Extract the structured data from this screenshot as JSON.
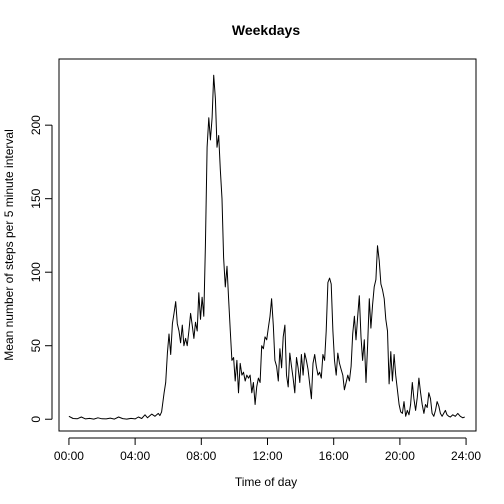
{
  "chart_data": {
    "type": "line",
    "title": "Weekdays",
    "xlabel": "Time of day",
    "ylabel": "Mean number of steps per 5 minute interval",
    "xlim": [
      -0.6,
      24.6
    ],
    "ylim": [
      -8,
      245
    ],
    "x_ticks": [
      {
        "value": 0,
        "label": "00:00"
      },
      {
        "value": 4,
        "label": "04:00"
      },
      {
        "value": 8,
        "label": "08:00"
      },
      {
        "value": 12,
        "label": "12:00"
      },
      {
        "value": 16,
        "label": "16:00"
      },
      {
        "value": 20,
        "label": "20:00"
      },
      {
        "value": 24,
        "label": "24:00"
      }
    ],
    "y_ticks": [
      {
        "value": 0,
        "label": "0"
      },
      {
        "value": 50,
        "label": "50"
      },
      {
        "value": 100,
        "label": "100"
      },
      {
        "value": 150,
        "label": "150"
      },
      {
        "value": 200,
        "label": "200"
      }
    ],
    "grid": false,
    "series": [
      {
        "color": "#000000",
        "points": [
          [
            0.0,
            2
          ],
          [
            0.25,
            0.5
          ],
          [
            0.5,
            0.3
          ],
          [
            0.75,
            1.5
          ],
          [
            1.0,
            0.2
          ],
          [
            1.25,
            0.6
          ],
          [
            1.5,
            0.1
          ],
          [
            1.75,
            1.0
          ],
          [
            2.0,
            0.3
          ],
          [
            2.25,
            0.2
          ],
          [
            2.5,
            0.8
          ],
          [
            2.75,
            0.1
          ],
          [
            3.0,
            1.5
          ],
          [
            3.25,
            0.4
          ],
          [
            3.5,
            0.1
          ],
          [
            3.75,
            0.6
          ],
          [
            4.0,
            0.2
          ],
          [
            4.2,
            1.5
          ],
          [
            4.4,
            0.5
          ],
          [
            4.6,
            3.0
          ],
          [
            4.75,
            1.0
          ],
          [
            5.0,
            3.5
          ],
          [
            5.2,
            2.0
          ],
          [
            5.4,
            4.0
          ],
          [
            5.5,
            2.5
          ],
          [
            5.6,
            5.0
          ],
          [
            5.75,
            18
          ],
          [
            5.85,
            25
          ],
          [
            5.95,
            45
          ],
          [
            6.05,
            58
          ],
          [
            6.15,
            44
          ],
          [
            6.25,
            65
          ],
          [
            6.35,
            72
          ],
          [
            6.45,
            80
          ],
          [
            6.55,
            65
          ],
          [
            6.65,
            60
          ],
          [
            6.75,
            52
          ],
          [
            6.85,
            64
          ],
          [
            6.95,
            50
          ],
          [
            7.05,
            55
          ],
          [
            7.15,
            50
          ],
          [
            7.25,
            60
          ],
          [
            7.35,
            72
          ],
          [
            7.45,
            64
          ],
          [
            7.55,
            55
          ],
          [
            7.65,
            66
          ],
          [
            7.75,
            60
          ],
          [
            7.85,
            86
          ],
          [
            7.95,
            68
          ],
          [
            8.05,
            83
          ],
          [
            8.15,
            70
          ],
          [
            8.25,
            118
          ],
          [
            8.35,
            185
          ],
          [
            8.45,
            205
          ],
          [
            8.55,
            190
          ],
          [
            8.65,
            205
          ],
          [
            8.75,
            234
          ],
          [
            8.85,
            218
          ],
          [
            8.95,
            185
          ],
          [
            9.05,
            193
          ],
          [
            9.15,
            170
          ],
          [
            9.25,
            150
          ],
          [
            9.35,
            110
          ],
          [
            9.45,
            90
          ],
          [
            9.55,
            104
          ],
          [
            9.65,
            82
          ],
          [
            9.75,
            60
          ],
          [
            9.85,
            40
          ],
          [
            9.95,
            42
          ],
          [
            10.05,
            26
          ],
          [
            10.15,
            40
          ],
          [
            10.25,
            18
          ],
          [
            10.35,
            38
          ],
          [
            10.45,
            30
          ],
          [
            10.55,
            32
          ],
          [
            10.65,
            26
          ],
          [
            10.75,
            30
          ],
          [
            10.85,
            28
          ],
          [
            10.95,
            30
          ],
          [
            11.05,
            18
          ],
          [
            11.15,
            25
          ],
          [
            11.25,
            10
          ],
          [
            11.35,
            22
          ],
          [
            11.45,
            28
          ],
          [
            11.55,
            25
          ],
          [
            11.65,
            50
          ],
          [
            11.75,
            48
          ],
          [
            11.85,
            56
          ],
          [
            11.95,
            54
          ],
          [
            12.05,
            62
          ],
          [
            12.15,
            70
          ],
          [
            12.25,
            82
          ],
          [
            12.35,
            64
          ],
          [
            12.45,
            40
          ],
          [
            12.55,
            36
          ],
          [
            12.65,
            26
          ],
          [
            12.75,
            48
          ],
          [
            12.85,
            35
          ],
          [
            12.95,
            56
          ],
          [
            13.05,
            64
          ],
          [
            13.15,
            30
          ],
          [
            13.25,
            22
          ],
          [
            13.35,
            45
          ],
          [
            13.45,
            36
          ],
          [
            13.55,
            28
          ],
          [
            13.65,
            18
          ],
          [
            13.75,
            42
          ],
          [
            13.85,
            35
          ],
          [
            13.95,
            25
          ],
          [
            14.05,
            44
          ],
          [
            14.15,
            30
          ],
          [
            14.25,
            45
          ],
          [
            14.35,
            40
          ],
          [
            14.45,
            34
          ],
          [
            14.55,
            24
          ],
          [
            14.65,
            14
          ],
          [
            14.75,
            38
          ],
          [
            14.85,
            44
          ],
          [
            14.95,
            36
          ],
          [
            15.05,
            30
          ],
          [
            15.15,
            32
          ],
          [
            15.25,
            28
          ],
          [
            15.35,
            44
          ],
          [
            15.45,
            40
          ],
          [
            15.55,
            60
          ],
          [
            15.65,
            93
          ],
          [
            15.75,
            96
          ],
          [
            15.85,
            92
          ],
          [
            15.95,
            60
          ],
          [
            16.05,
            40
          ],
          [
            16.15,
            30
          ],
          [
            16.25,
            45
          ],
          [
            16.35,
            38
          ],
          [
            16.45,
            34
          ],
          [
            16.55,
            30
          ],
          [
            16.65,
            20
          ],
          [
            16.75,
            25
          ],
          [
            16.85,
            30
          ],
          [
            16.95,
            26
          ],
          [
            17.05,
            36
          ],
          [
            17.15,
            58
          ],
          [
            17.25,
            70
          ],
          [
            17.35,
            54
          ],
          [
            17.45,
            70
          ],
          [
            17.55,
            84
          ],
          [
            17.65,
            56
          ],
          [
            17.75,
            40
          ],
          [
            17.85,
            54
          ],
          [
            17.95,
            25
          ],
          [
            18.05,
            50
          ],
          [
            18.15,
            82
          ],
          [
            18.25,
            62
          ],
          [
            18.35,
            78
          ],
          [
            18.45,
            90
          ],
          [
            18.55,
            95
          ],
          [
            18.65,
            118
          ],
          [
            18.75,
            108
          ],
          [
            18.85,
            92
          ],
          [
            18.95,
            88
          ],
          [
            19.05,
            82
          ],
          [
            19.15,
            68
          ],
          [
            19.25,
            60
          ],
          [
            19.35,
            24
          ],
          [
            19.45,
            46
          ],
          [
            19.55,
            26
          ],
          [
            19.65,
            44
          ],
          [
            19.75,
            30
          ],
          [
            19.85,
            20
          ],
          [
            19.95,
            10
          ],
          [
            20.05,
            5
          ],
          [
            20.15,
            4
          ],
          [
            20.25,
            12
          ],
          [
            20.35,
            2
          ],
          [
            20.45,
            6
          ],
          [
            20.55,
            3
          ],
          [
            20.65,
            10
          ],
          [
            20.75,
            25
          ],
          [
            20.85,
            14
          ],
          [
            20.95,
            6
          ],
          [
            21.05,
            15
          ],
          [
            21.15,
            28
          ],
          [
            21.25,
            18
          ],
          [
            21.35,
            10
          ],
          [
            21.45,
            4
          ],
          [
            21.55,
            10
          ],
          [
            21.65,
            8
          ],
          [
            21.75,
            18
          ],
          [
            21.85,
            14
          ],
          [
            21.95,
            4
          ],
          [
            22.05,
            2
          ],
          [
            22.15,
            6
          ],
          [
            22.25,
            12
          ],
          [
            22.35,
            9
          ],
          [
            22.45,
            4
          ],
          [
            22.55,
            2
          ],
          [
            22.65,
            4
          ],
          [
            22.75,
            6
          ],
          [
            22.85,
            3
          ],
          [
            22.95,
            2
          ],
          [
            23.05,
            1.5
          ],
          [
            23.2,
            3
          ],
          [
            23.35,
            2
          ],
          [
            23.5,
            4
          ],
          [
            23.65,
            2
          ],
          [
            23.8,
            1
          ],
          [
            23.92,
            1.5
          ]
        ]
      }
    ]
  }
}
